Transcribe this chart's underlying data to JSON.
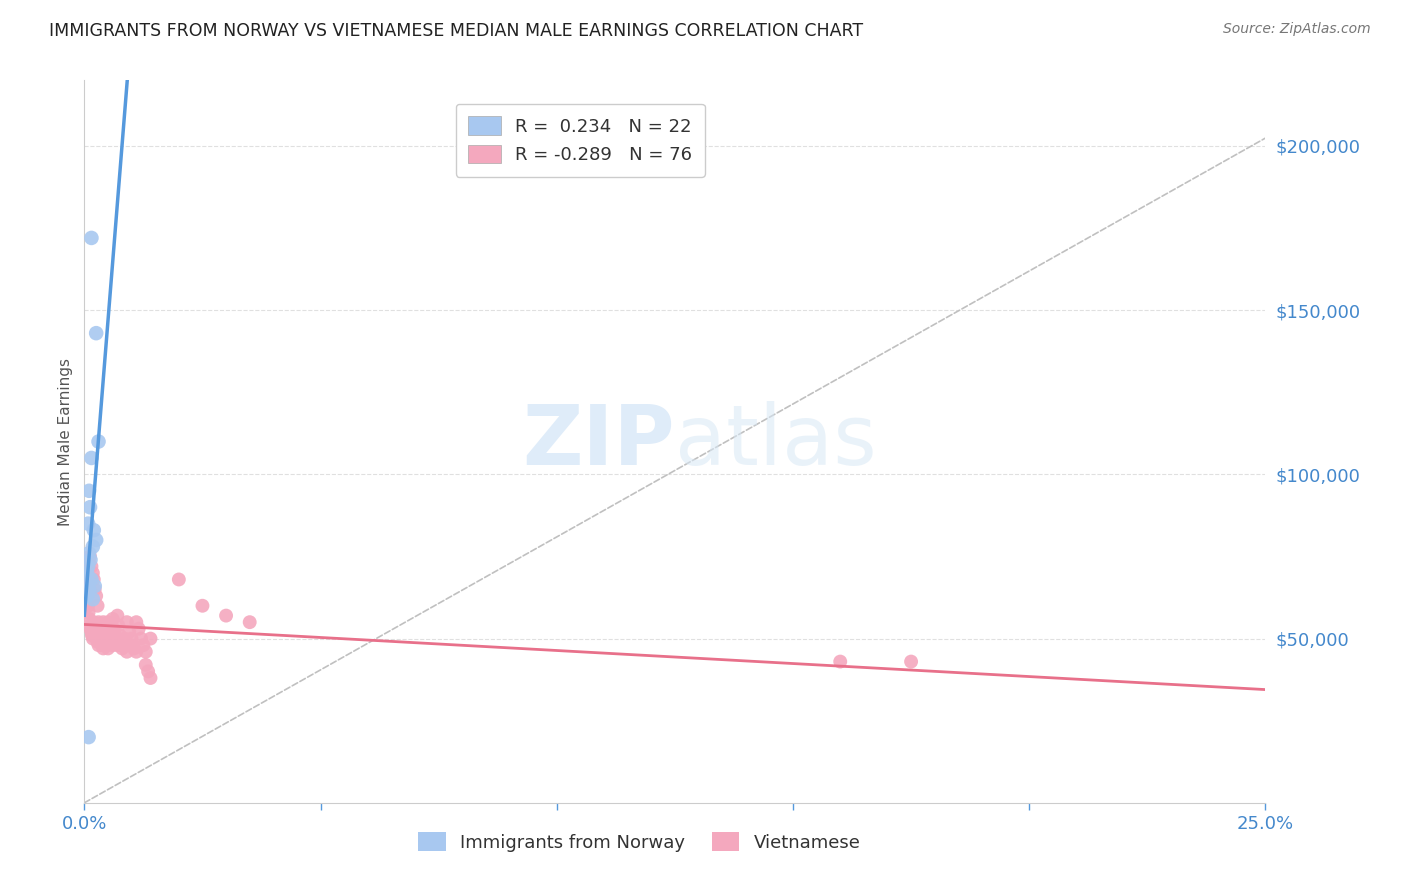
{
  "title": "IMMIGRANTS FROM NORWAY VS VIETNAMESE MEDIAN MALE EARNINGS CORRELATION CHART",
  "source": "Source: ZipAtlas.com",
  "ylabel": "Median Male Earnings",
  "ylabel_right_ticks": [
    0,
    50000,
    100000,
    150000,
    200000
  ],
  "ylabel_right_labels": [
    "",
    "$50,000",
    "$100,000",
    "$150,000",
    "$200,000"
  ],
  "xlim": [
    0.0,
    0.25
  ],
  "ylim": [
    0,
    220000
  ],
  "watermark_zip": "ZIP",
  "watermark_atlas": "atlas",
  "legend_norway_r": "0.234",
  "legend_norway_n": "22",
  "legend_viet_r": "-0.289",
  "legend_viet_n": "76",
  "norway_color": "#a8c8f0",
  "viet_color": "#f4a8be",
  "norway_line_color": "#5599dd",
  "viet_line_color": "#e8708a",
  "dashed_line_color": "#c0c0c0",
  "norway_points": [
    [
      0.0015,
      172000
    ],
    [
      0.0025,
      143000
    ],
    [
      0.003,
      110000
    ],
    [
      0.0015,
      105000
    ],
    [
      0.001,
      95000
    ],
    [
      0.0012,
      90000
    ],
    [
      0.0008,
      85000
    ],
    [
      0.002,
      83000
    ],
    [
      0.0025,
      80000
    ],
    [
      0.0018,
      78000
    ],
    [
      0.001,
      76000
    ],
    [
      0.0013,
      74000
    ],
    [
      0.0008,
      72000
    ],
    [
      0.0006,
      70000
    ],
    [
      0.0015,
      68000
    ],
    [
      0.0005,
      68000
    ],
    [
      0.0022,
      66000
    ],
    [
      0.001,
      65000
    ],
    [
      0.0008,
      64000
    ],
    [
      0.0006,
      63000
    ],
    [
      0.0009,
      20000
    ],
    [
      0.0018,
      62000
    ]
  ],
  "viet_points": [
    [
      0.0008,
      72000
    ],
    [
      0.001,
      68000
    ],
    [
      0.0012,
      75000
    ],
    [
      0.0015,
      72000
    ],
    [
      0.0018,
      70000
    ],
    [
      0.002,
      68000
    ],
    [
      0.0022,
      65000
    ],
    [
      0.0025,
      63000
    ],
    [
      0.0028,
      60000
    ],
    [
      0.0005,
      67000
    ],
    [
      0.0006,
      64000
    ],
    [
      0.0007,
      62000
    ],
    [
      0.0008,
      60000
    ],
    [
      0.0009,
      58000
    ],
    [
      0.001,
      56000
    ],
    [
      0.0012,
      54000
    ],
    [
      0.0013,
      53000
    ],
    [
      0.0015,
      52000
    ],
    [
      0.0016,
      51000
    ],
    [
      0.0018,
      50000
    ],
    [
      0.002,
      55000
    ],
    [
      0.0022,
      53000
    ],
    [
      0.0024,
      52000
    ],
    [
      0.0026,
      50000
    ],
    [
      0.0028,
      49000
    ],
    [
      0.003,
      48000
    ],
    [
      0.003,
      55000
    ],
    [
      0.0035,
      53000
    ],
    [
      0.0035,
      50000
    ],
    [
      0.0038,
      48000
    ],
    [
      0.004,
      47000
    ],
    [
      0.004,
      55000
    ],
    [
      0.0042,
      52000
    ],
    [
      0.0045,
      50000
    ],
    [
      0.0048,
      48000
    ],
    [
      0.005,
      47000
    ],
    [
      0.005,
      55000
    ],
    [
      0.0052,
      53000
    ],
    [
      0.0055,
      51000
    ],
    [
      0.0058,
      49000
    ],
    [
      0.006,
      48000
    ],
    [
      0.006,
      56000
    ],
    [
      0.0062,
      53000
    ],
    [
      0.0065,
      51000
    ],
    [
      0.0068,
      49000
    ],
    [
      0.007,
      48000
    ],
    [
      0.007,
      57000
    ],
    [
      0.0072,
      54000
    ],
    [
      0.0075,
      51000
    ],
    [
      0.0078,
      49000
    ],
    [
      0.008,
      48000
    ],
    [
      0.008,
      47000
    ],
    [
      0.0085,
      50000
    ],
    [
      0.0088,
      48000
    ],
    [
      0.009,
      46000
    ],
    [
      0.009,
      55000
    ],
    [
      0.0095,
      52000
    ],
    [
      0.01,
      50000
    ],
    [
      0.01,
      48000
    ],
    [
      0.0105,
      47000
    ],
    [
      0.011,
      46000
    ],
    [
      0.011,
      55000
    ],
    [
      0.0115,
      53000
    ],
    [
      0.012,
      50000
    ],
    [
      0.0125,
      48000
    ],
    [
      0.013,
      46000
    ],
    [
      0.013,
      42000
    ],
    [
      0.0135,
      40000
    ],
    [
      0.014,
      38000
    ],
    [
      0.014,
      50000
    ],
    [
      0.02,
      68000
    ],
    [
      0.025,
      60000
    ],
    [
      0.03,
      57000
    ],
    [
      0.035,
      55000
    ],
    [
      0.16,
      43000
    ],
    [
      0.175,
      43000
    ]
  ],
  "background_color": "#ffffff",
  "grid_color": "#e0e0e0"
}
